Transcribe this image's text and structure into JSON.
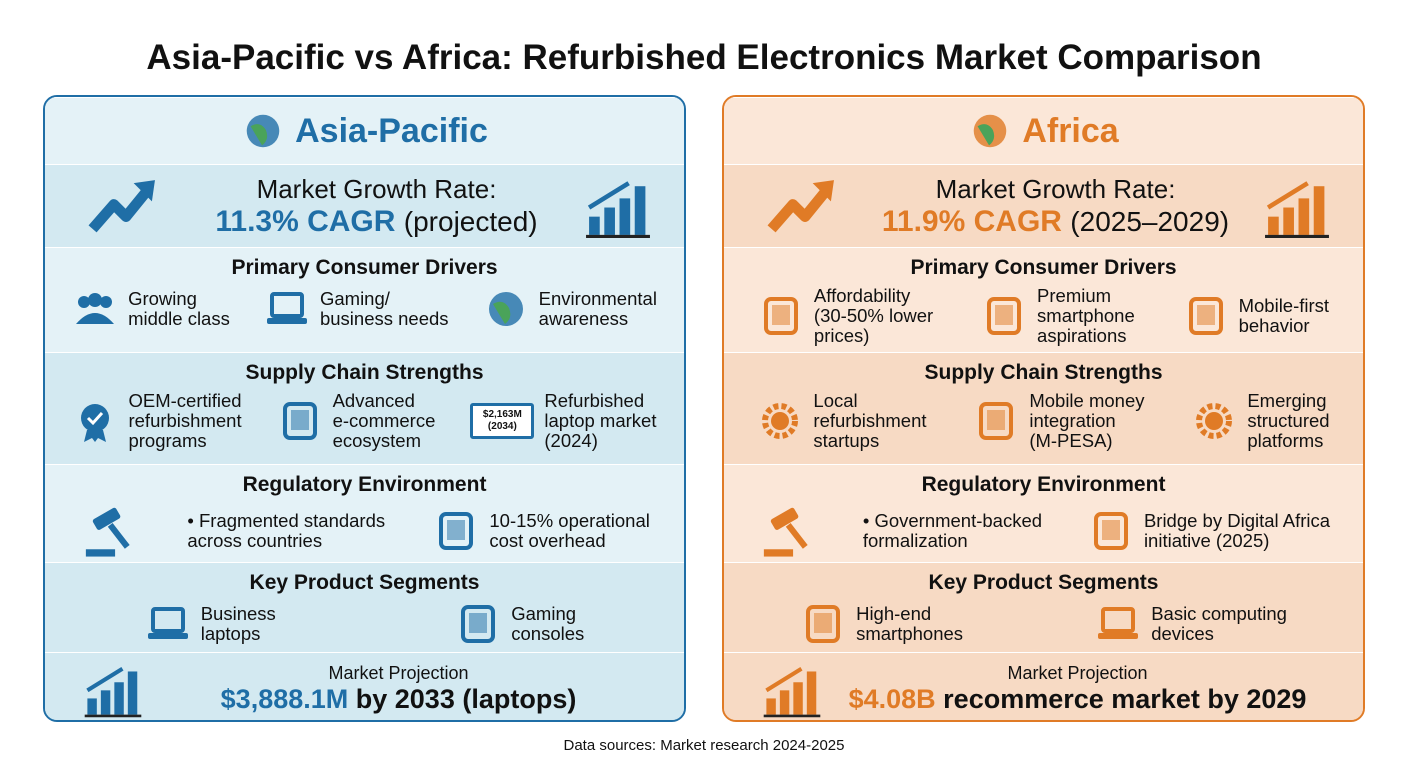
{
  "title": "Asia-Pacific vs Africa: Refurbished Electronics Market Comparison",
  "panels": [
    {
      "name": "Asia-Pacific",
      "color": "#1f6ea6",
      "fill": "#e4f2f7",
      "band": "#d3e9f1",
      "growth": {
        "label": "Market Growth Rate:",
        "value": "11.3% CAGR",
        "note": "(projected)"
      },
      "drivers": {
        "heading": "Primary Consumer Drivers",
        "items": [
          [
            "Growing",
            "middle class"
          ],
          [
            "Gaming/",
            "business needs"
          ],
          [
            "Environmental",
            "awareness"
          ]
        ]
      },
      "supply": {
        "heading": "Supply Chain Strengths",
        "items": [
          [
            "OEM-certified",
            "refurbishment",
            "programs"
          ],
          [
            "Advanced",
            "e-commerce",
            "ecosystem"
          ],
          [
            "Refurbished",
            "laptop market",
            "(2024)"
          ]
        ],
        "icon_text": [
          "$2,163M",
          "(2034)"
        ]
      },
      "regulatory": {
        "heading": "Regulatory Environment",
        "items": [
          [
            "Fragmented standards",
            "across countries"
          ],
          [
            "10-15% operational",
            "cost overhead"
          ]
        ]
      },
      "segments": {
        "heading": "Key Product Segments",
        "items": [
          [
            "Business",
            "laptops"
          ],
          [
            "Gaming",
            "consoles"
          ]
        ]
      },
      "projection": {
        "label": "Market Projection",
        "value": "$3,888.1M",
        "rest": "by 2033 (laptops)"
      }
    },
    {
      "name": "Africa",
      "color": "#e07b26",
      "fill": "#fbe7d8",
      "band": "#f7dac4",
      "growth": {
        "label": "Market Growth Rate:",
        "value": "11.9% CAGR",
        "note": "(2025–2029)"
      },
      "drivers": {
        "heading": "Primary Consumer Drivers",
        "items": [
          [
            "Affordability",
            "(30-50% lower",
            "prices)"
          ],
          [
            "Premium",
            "smartphone",
            "aspirations"
          ],
          [
            "Mobile-first",
            "behavior"
          ]
        ]
      },
      "supply": {
        "heading": "Supply Chain Strengths",
        "items": [
          [
            "Local",
            "refurbishment",
            "startups"
          ],
          [
            "Mobile money",
            "integration",
            "(M-PESA)"
          ],
          [
            "Emerging",
            "structured",
            "platforms"
          ]
        ]
      },
      "regulatory": {
        "heading": "Regulatory Environment",
        "items": [
          [
            "Government-backed",
            "formalization"
          ],
          [
            "Bridge by Digital Africa",
            "initiative (2025)"
          ]
        ]
      },
      "segments": {
        "heading": "Key Product Segments",
        "items": [
          [
            "High-end",
            "smartphones"
          ],
          [
            "Basic computing",
            "devices"
          ]
        ]
      },
      "projection": {
        "label": "Market Projection",
        "value": "$4.08B",
        "rest": "recommerce market by 2029"
      }
    }
  ],
  "footer": "Data sources: Market research 2024-2025"
}
